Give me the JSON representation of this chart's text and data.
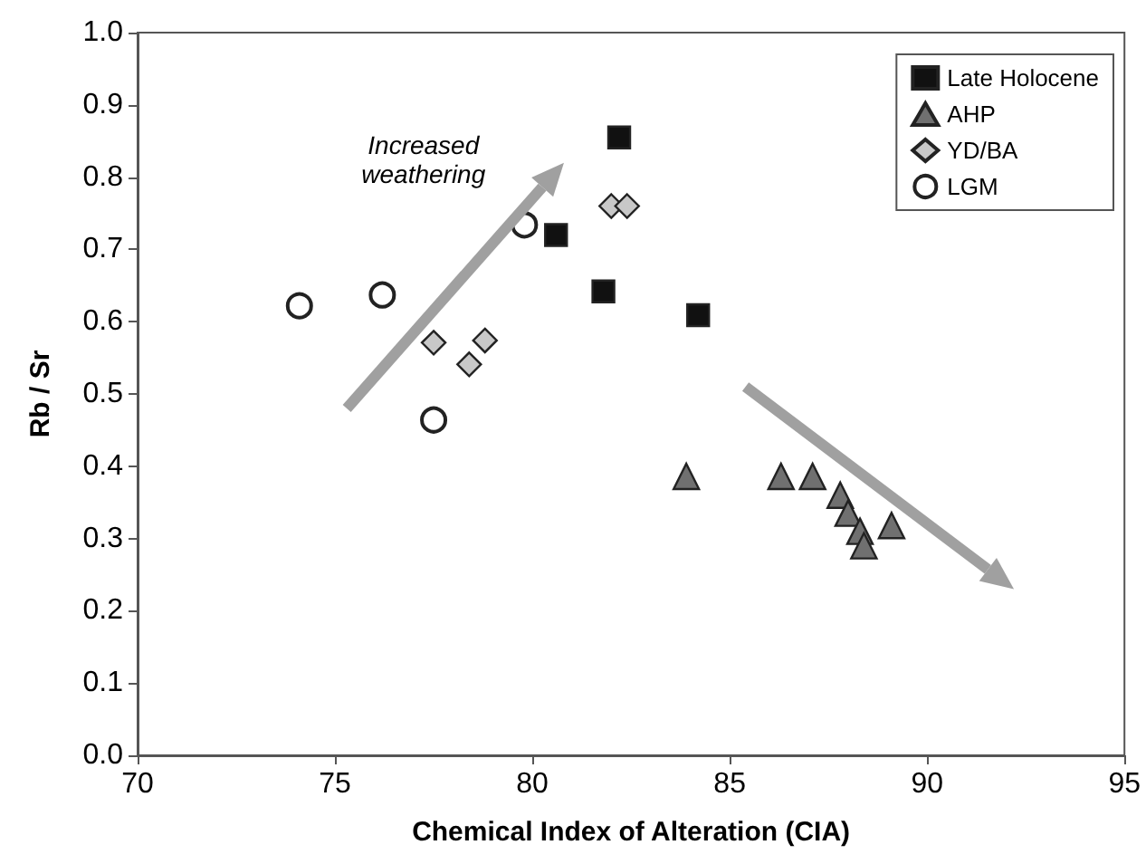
{
  "chart_data": {
    "type": "scatter",
    "xlabel": "Chemical Index of Alteration (CIA)",
    "ylabel": "Rb / Sr",
    "xlim": [
      70,
      95
    ],
    "xticks": [
      70,
      75,
      80,
      85,
      90,
      95
    ],
    "ylim": [
      0,
      1
    ],
    "yticks": [
      {
        "value": 0,
        "label": "0.0"
      },
      0.1,
      0.2,
      0.3,
      0.4,
      0.5,
      0.6,
      0.7,
      0.8,
      0.9,
      {
        "value": 1,
        "label": "1.0"
      }
    ],
    "grid": false,
    "legend": "top right",
    "annotations": [
      "Increased weathering"
    ],
    "series": [
      {
        "name": "Late Holocene",
        "color": "#111111",
        "marker": "square",
        "x": [
          80.6,
          82.2,
          81.8,
          84.2
        ],
        "values": [
          0.72,
          0.855,
          0.642,
          0.609
        ]
      },
      {
        "name": "AHP",
        "color": "#707070",
        "marker": "triangle",
        "x": [
          83.9,
          86.3,
          87.1,
          87.8,
          88.0,
          88.3,
          88.4,
          89.1
        ],
        "values": [
          0.386,
          0.386,
          0.386,
          0.36,
          0.335,
          0.31,
          0.29,
          0.318
        ]
      },
      {
        "name": "YD/BA",
        "color": "#c8c8c8",
        "marker": "diamond",
        "x": [
          77.5,
          78.8,
          78.4,
          82.0,
          82.4
        ],
        "values": [
          0.571,
          0.574,
          0.541,
          0.76,
          0.76
        ]
      },
      {
        "name": "LGM",
        "color": "#222222",
        "marker": "circle",
        "x": [
          74.1,
          76.2,
          77.5,
          79.8
        ],
        "values": [
          0.622,
          0.637,
          0.464,
          0.734
        ]
      }
    ]
  }
}
